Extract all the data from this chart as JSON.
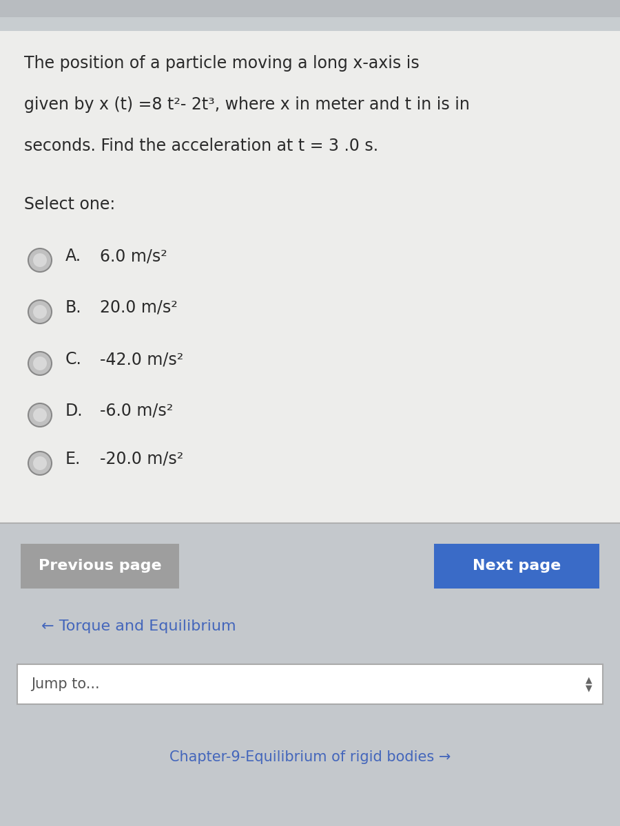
{
  "bg_outer": "#c8cdd0",
  "bg_card": "#e8e8e8",
  "bg_bottom": "#c8cdd0",
  "question_text_line1": "The position of a particle moving a long x-axis is",
  "question_text_line2": "given by x (t) =8 t²- 2t³, where x in meter and t in is in",
  "question_text_line3": "seconds. Find the acceleration at t = 3 .0 s.",
  "select_one": "Select one:",
  "options": [
    {
      "letter": "A.",
      "text": "6.0 m/s²"
    },
    {
      "letter": "B.",
      "text": "20.0 m/s²"
    },
    {
      "letter": "C.",
      "text": "-42.0 m/s²"
    },
    {
      "letter": "D.",
      "text": "-6.0 m/s²"
    },
    {
      "letter": "E.",
      "text": "-20.0 m/s²"
    }
  ],
  "prev_button_text": "Previous page",
  "next_button_text": "Next page",
  "prev_button_color": "#9e9e9e",
  "next_button_color": "#3a6bc7",
  "link_text": "← Torque and Equilibrium",
  "link_color": "#4466bb",
  "jump_text": "Jump to...",
  "bottom_text": "Chapter-9-Equilibrium of rigid bodies →",
  "bottom_text_color": "#4466bb",
  "text_color": "#2a2a2a",
  "radio_outer": "#aaaaaa",
  "radio_inner": "#bbbbbb"
}
